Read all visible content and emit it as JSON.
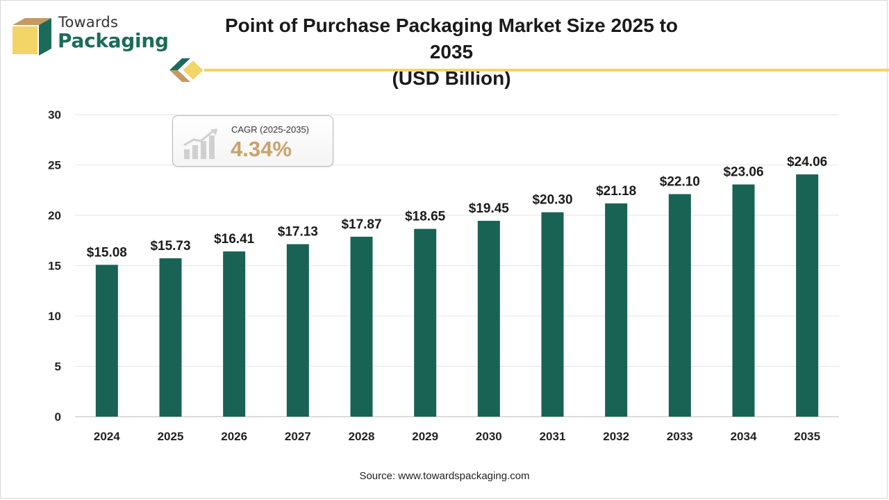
{
  "brand": {
    "line1": "Towards",
    "line2": "Packaging"
  },
  "colors": {
    "bar": "#186354",
    "accent": "#f2d467",
    "brand_green": "#1c6b5a",
    "cagr_gold": "#c9a26a"
  },
  "cagr": {
    "label": "CAGR (2025-2035)",
    "value": "4.34%",
    "icon": "growth-chart-icon"
  },
  "source": "Source: www.towardspackaging.com",
  "chart_data": {
    "type": "bar",
    "title": "Point of Purchase Packaging Market Size 2025 to 2035",
    "subtitle": "(USD Billion)",
    "categories": [
      "2024",
      "2025",
      "2026",
      "2027",
      "2028",
      "2029",
      "2030",
      "2031",
      "2032",
      "2033",
      "2034",
      "2035"
    ],
    "values": [
      15.08,
      15.73,
      16.41,
      17.13,
      17.87,
      18.65,
      19.45,
      20.3,
      21.18,
      22.1,
      23.06,
      24.06
    ],
    "data_labels": [
      "$15.08",
      "$15.73",
      "$16.41",
      "$17.13",
      "$17.87",
      "$18.65",
      "$19.45",
      "$20.30",
      "$21.18",
      "$22.10",
      "$23.06",
      "$24.06"
    ],
    "ylim": [
      0,
      30
    ],
    "yticks": [
      0,
      5,
      10,
      15,
      20,
      25,
      30
    ],
    "xlabel": "",
    "ylabel": "",
    "grid": true,
    "legend": "none"
  }
}
